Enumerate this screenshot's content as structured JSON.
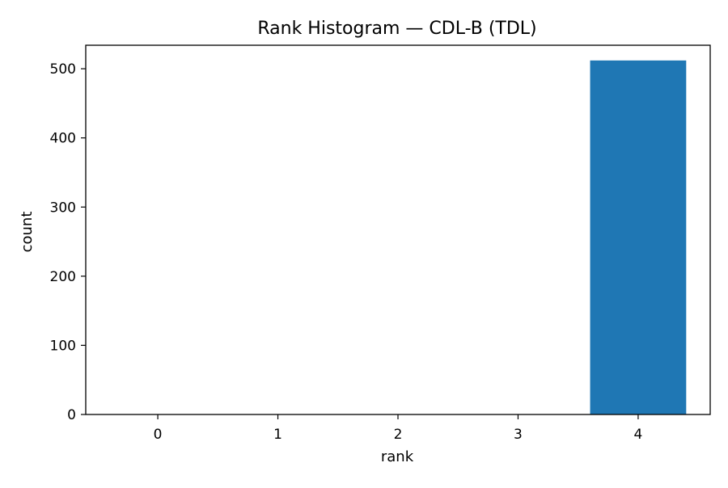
{
  "chart_data": {
    "type": "bar",
    "title": "Rank Histogram — CDL-B (TDL)",
    "xlabel": "rank",
    "ylabel": "count",
    "categories": [
      "0",
      "1",
      "2",
      "3",
      "4"
    ],
    "values": [
      0,
      0,
      0,
      0,
      512
    ],
    "ylim": [
      0,
      534
    ],
    "yticks": [
      0,
      100,
      200,
      300,
      400,
      500
    ],
    "bar_color": "#1f77b4",
    "grid": false,
    "legend": "none"
  }
}
